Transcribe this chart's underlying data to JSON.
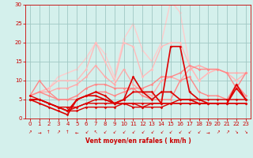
{
  "x": [
    0,
    1,
    2,
    3,
    4,
    5,
    6,
    7,
    8,
    9,
    10,
    11,
    12,
    13,
    14,
    15,
    16,
    17,
    18,
    19,
    20,
    21,
    22,
    23
  ],
  "lines": [
    {
      "y": [
        6,
        5,
        4,
        3,
        3,
        3,
        4,
        4,
        4,
        4,
        4,
        4,
        4,
        4,
        4,
        4,
        4,
        4,
        4,
        4,
        4,
        4,
        4,
        4
      ],
      "color": "#dd0000",
      "lw": 1.0,
      "alpha": 1.0,
      "zorder": 5
    },
    {
      "y": [
        5,
        5,
        4,
        3,
        2,
        2,
        3,
        3,
        3,
        3,
        4,
        3,
        3,
        3,
        3,
        4,
        4,
        4,
        4,
        4,
        4,
        4,
        4,
        4
      ],
      "color": "#dd0000",
      "lw": 1.0,
      "alpha": 1.0,
      "zorder": 5
    },
    {
      "y": [
        5,
        5,
        4,
        3,
        2,
        3,
        4,
        5,
        5,
        4,
        4,
        4,
        3,
        4,
        4,
        4,
        5,
        5,
        5,
        5,
        5,
        5,
        5,
        5
      ],
      "color": "#dd0000",
      "lw": 1.0,
      "alpha": 1.0,
      "zorder": 5
    },
    {
      "y": [
        5,
        5,
        4,
        3,
        2,
        5,
        6,
        7,
        6,
        4,
        5,
        7,
        7,
        5,
        7,
        7,
        5,
        5,
        4,
        4,
        4,
        4,
        9,
        5
      ],
      "color": "#dd0000",
      "lw": 1.2,
      "alpha": 1.0,
      "zorder": 6
    },
    {
      "y": [
        5,
        4,
        3,
        2,
        1,
        5,
        6,
        6,
        5,
        4,
        5,
        11,
        7,
        7,
        4,
        19,
        19,
        7,
        5,
        4,
        4,
        4,
        8,
        5
      ],
      "color": "#dd0000",
      "lw": 1.2,
      "alpha": 1.0,
      "zorder": 6
    },
    {
      "y": [
        6,
        10,
        7,
        5,
        5,
        5,
        6,
        7,
        7,
        6,
        7,
        8,
        6,
        5,
        5,
        5,
        10,
        11,
        7,
        6,
        6,
        5,
        9,
        6
      ],
      "color": "#ff8888",
      "lw": 1.0,
      "alpha": 1.0,
      "zorder": 4
    },
    {
      "y": [
        6,
        7,
        6,
        5,
        5,
        6,
        8,
        9,
        9,
        8,
        8,
        8,
        8,
        9,
        11,
        11,
        12,
        14,
        13,
        13,
        13,
        12,
        8,
        12
      ],
      "color": "#ff8888",
      "lw": 1.0,
      "alpha": 1.0,
      "zorder": 4
    },
    {
      "y": [
        6,
        7,
        7,
        8,
        8,
        9,
        11,
        14,
        11,
        9,
        13,
        9,
        7,
        6,
        10,
        11,
        10,
        13,
        14,
        13,
        13,
        12,
        12,
        12
      ],
      "color": "#ffaaaa",
      "lw": 1.0,
      "alpha": 1.0,
      "zorder": 3
    },
    {
      "y": [
        6,
        7,
        8,
        10,
        10,
        10,
        13,
        20,
        15,
        10,
        20,
        19,
        11,
        13,
        19,
        20,
        20,
        14,
        10,
        12,
        13,
        12,
        10,
        12
      ],
      "color": "#ffbbbb",
      "lw": 1.0,
      "alpha": 1.0,
      "zorder": 2
    },
    {
      "y": [
        6,
        7,
        8,
        11,
        12,
        13,
        16,
        20,
        17,
        11,
        21,
        25,
        18,
        15,
        20,
        31,
        28,
        14,
        10,
        12,
        13,
        12,
        10,
        12
      ],
      "color": "#ffcccc",
      "lw": 1.0,
      "alpha": 1.0,
      "zorder": 1
    }
  ],
  "arrows": [
    "↗",
    "→",
    "↑",
    "↗",
    "↑",
    "←",
    "↙",
    "↖",
    "↙",
    "↙",
    "↙",
    "↙",
    "↙",
    "↙",
    "↙",
    "↙",
    "↙",
    "↙",
    "↙",
    "→",
    "↗",
    "↗",
    "↘",
    "↘"
  ],
  "xlabel": "Vent moyen/en rafales ( km/h )",
  "bg_color": "#d4f0ec",
  "grid_color": "#a0c8c4",
  "xlim": [
    -0.5,
    23.5
  ],
  "ylim": [
    0,
    30
  ],
  "yticks": [
    0,
    5,
    10,
    15,
    20,
    25,
    30
  ],
  "xticks": [
    0,
    1,
    2,
    3,
    4,
    5,
    6,
    7,
    8,
    9,
    10,
    11,
    12,
    13,
    14,
    15,
    16,
    17,
    18,
    19,
    20,
    21,
    22,
    23
  ]
}
